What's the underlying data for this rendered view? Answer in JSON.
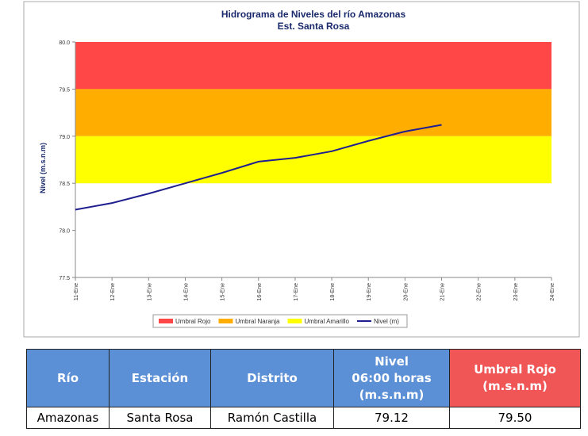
{
  "chart_data": {
    "type": "line",
    "title": "Hidrograma de Niveles del río Amazonas",
    "subtitle": "Est. Santa Rosa",
    "y_label": "Nivel (m.s.n.m)",
    "categories": [
      "11-Ene",
      "12-Ene",
      "13-Ene",
      "14-Ene",
      "15-Ene",
      "16-Ene",
      "17-Ene",
      "18-Ene",
      "19-Ene",
      "20-Ene",
      "21-Ene",
      "22-Ene",
      "23-Ene",
      "24-Ene"
    ],
    "bands": [
      {
        "name": "Umbral Rojo",
        "color": "#ff4747",
        "range": [
          79.5,
          80.0
        ]
      },
      {
        "name": "Umbral Naranja",
        "color": "#ffae00",
        "range": [
          79.0,
          79.5
        ]
      },
      {
        "name": "Umbral Amarillo",
        "color": "#ffff00",
        "range": [
          78.5,
          79.0
        ]
      }
    ],
    "series": [
      {
        "name": "Nivel (m)",
        "color": "#1f1f8f",
        "values": [
          78.22,
          78.29,
          78.39,
          78.5,
          78.61,
          78.73,
          78.77,
          78.84,
          78.95,
          79.05,
          79.12,
          null,
          null,
          null
        ]
      }
    ],
    "ylim": [
      77.5,
      80.0
    ],
    "yticks": [
      77.5,
      {
        "value": 78,
        "label": "78.0"
      },
      78.5,
      {
        "value": 79,
        "label": "79.0"
      },
      79.5,
      {
        "value": 80,
        "label": "80.0"
      }
    ],
    "legend": "bottom"
  },
  "table": {
    "header": [
      "Río",
      "Estación",
      "Distrito",
      "Nivel\n06:00 horas\n(m.s.n.m)",
      "Umbral Rojo\n(m.s.n.m)"
    ],
    "rows": [
      [
        "Amazonas",
        "Santa Rosa",
        "Ramón Castilla",
        "79.12",
        "79.50"
      ]
    ]
  }
}
